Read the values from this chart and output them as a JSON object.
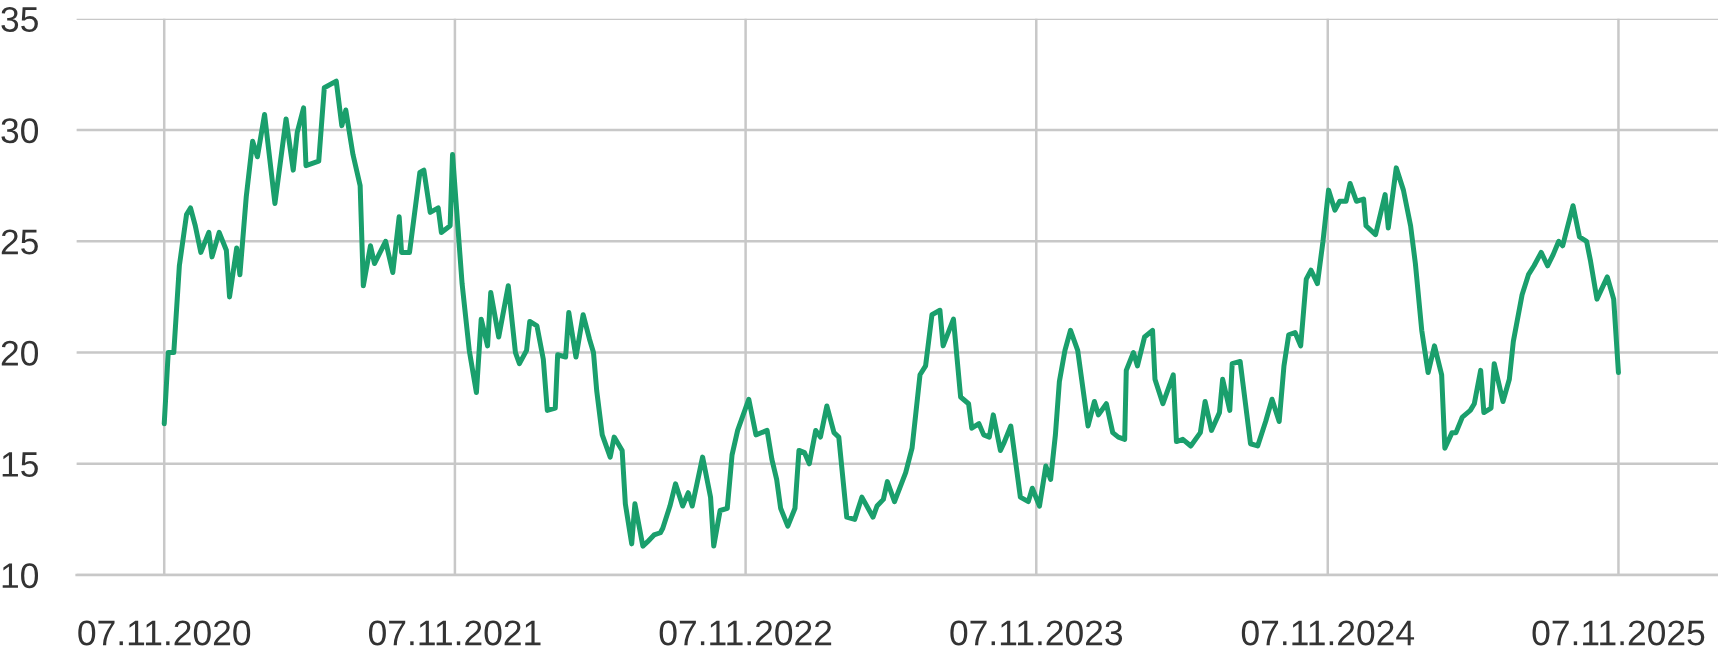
{
  "chart_data": {
    "type": "line",
    "x": [
      "2020-11-07",
      "2020-11-12",
      "2020-11-19",
      "2020-11-26",
      "2020-12-05",
      "2020-12-10",
      "2020-12-16",
      "2020-12-23",
      "2021-01-02",
      "2021-01-06",
      "2021-01-15",
      "2021-01-24",
      "2021-01-28",
      "2021-02-06",
      "2021-02-10",
      "2021-02-18",
      "2021-02-26",
      "2021-03-04",
      "2021-03-13",
      "2021-03-26",
      "2021-04-09",
      "2021-04-18",
      "2021-04-23",
      "2021-05-01",
      "2021-05-04",
      "2021-05-20",
      "2021-05-27",
      "2021-06-11",
      "2021-06-18",
      "2021-06-23",
      "2021-07-02",
      "2021-07-11",
      "2021-07-15",
      "2021-07-24",
      "2021-07-29",
      "2021-08-12",
      "2021-08-21",
      "2021-08-29",
      "2021-09-01",
      "2021-09-11",
      "2021-09-24",
      "2021-09-29",
      "2021-10-07",
      "2021-10-17",
      "2021-10-21",
      "2021-11-01",
      "2021-11-04",
      "2021-11-16",
      "2021-11-25",
      "2021-12-04",
      "2021-12-10",
      "2021-12-18",
      "2021-12-22",
      "2022-01-01",
      "2022-01-13",
      "2022-01-22",
      "2022-01-27",
      "2022-02-05",
      "2022-02-09",
      "2022-02-18",
      "2022-02-26",
      "2022-03-03",
      "2022-03-13",
      "2022-03-16",
      "2022-03-26",
      "2022-03-30",
      "2022-04-08",
      "2022-04-17",
      "2022-04-25",
      "2022-04-30",
      "2022-05-04",
      "2022-05-11",
      "2022-05-21",
      "2022-05-26",
      "2022-06-05",
      "2022-06-09",
      "2022-06-17",
      "2022-06-21",
      "2022-07-01",
      "2022-07-07",
      "2022-07-15",
      "2022-07-23",
      "2022-07-26",
      "2022-08-04",
      "2022-08-11",
      "2022-08-20",
      "2022-08-27",
      "2022-09-01",
      "2022-09-14",
      "2022-09-24",
      "2022-09-28",
      "2022-10-06",
      "2022-10-15",
      "2022-10-21",
      "2022-10-28",
      "2022-11-11",
      "2022-11-20",
      "2022-12-04",
      "2022-12-10",
      "2022-12-16",
      "2022-12-21",
      "2022-12-30",
      "2023-01-08",
      "2023-01-13",
      "2023-01-20",
      "2023-01-26",
      "2023-02-03",
      "2023-02-09",
      "2023-02-17",
      "2023-02-26",
      "2023-03-04",
      "2023-03-14",
      "2023-03-24",
      "2023-04-02",
      "2023-04-16",
      "2023-04-21",
      "2023-04-29",
      "2023-05-04",
      "2023-05-13",
      "2023-05-27",
      "2023-06-04",
      "2023-06-14",
      "2023-06-21",
      "2023-06-29",
      "2023-07-09",
      "2023-07-13",
      "2023-07-26",
      "2023-08-04",
      "2023-08-14",
      "2023-08-18",
      "2023-08-27",
      "2023-09-02",
      "2023-09-09",
      "2023-09-14",
      "2023-09-23",
      "2023-09-27",
      "2023-10-06",
      "2023-10-18",
      "2023-10-28",
      "2023-11-02",
      "2023-11-11",
      "2023-11-19",
      "2023-11-25",
      "2023-12-01",
      "2023-12-06",
      "2023-12-13",
      "2023-12-20",
      "2023-12-29",
      "2024-01-11",
      "2024-01-19",
      "2024-01-24",
      "2024-02-03",
      "2024-02-11",
      "2024-02-18",
      "2024-02-26",
      "2024-02-28",
      "2024-03-08",
      "2024-03-13",
      "2024-03-22",
      "2024-04-01",
      "2024-04-04",
      "2024-04-14",
      "2024-04-27",
      "2024-05-01",
      "2024-05-09",
      "2024-05-19",
      "2024-05-31",
      "2024-06-06",
      "2024-06-14",
      "2024-06-24",
      "2024-06-28",
      "2024-07-07",
      "2024-07-10",
      "2024-07-20",
      "2024-08-02",
      "2024-08-11",
      "2024-08-21",
      "2024-08-29",
      "2024-09-07",
      "2024-09-13",
      "2024-09-19",
      "2024-09-27",
      "2024-10-04",
      "2024-10-11",
      "2024-10-17",
      "2024-10-25",
      "2024-11-01",
      "2024-11-08",
      "2024-11-16",
      "2024-11-22",
      "2024-11-30",
      "2024-12-05",
      "2024-12-13",
      "2024-12-22",
      "2024-12-25",
      "2025-01-06",
      "2025-01-18",
      "2025-01-22",
      "2025-02-01",
      "2025-02-10",
      "2025-02-19",
      "2025-02-25",
      "2025-03-05",
      "2025-03-13",
      "2025-03-21",
      "2025-03-30",
      "2025-04-03",
      "2025-04-12",
      "2025-04-17",
      "2025-04-25",
      "2025-05-05",
      "2025-05-10",
      "2025-05-18",
      "2025-05-22",
      "2025-05-31",
      "2025-06-04",
      "2025-06-15",
      "2025-06-23",
      "2025-06-28",
      "2025-07-09",
      "2025-07-17",
      "2025-07-24",
      "2025-08-02",
      "2025-08-10",
      "2025-08-17",
      "2025-08-24",
      "2025-08-29",
      "2025-09-03",
      "2025-09-11",
      "2025-09-19",
      "2025-09-28",
      "2025-10-03",
      "2025-10-11",
      "2025-10-24",
      "2025-11-01",
      "2025-11-07"
    ],
    "series": [
      {
        "color": "#1a9f6c",
        "values": [
          16.8,
          20.0,
          20.0,
          23.9,
          26.2,
          26.5,
          25.7,
          24.5,
          25.4,
          24.3,
          25.4,
          24.6,
          22.5,
          24.7,
          23.5,
          27.0,
          29.5,
          28.8,
          30.7,
          26.7,
          30.5,
          28.2,
          29.9,
          31.0,
          28.4,
          28.6,
          31.9,
          32.2,
          30.2,
          30.9,
          28.9,
          27.5,
          23.0,
          24.8,
          24.0,
          25.0,
          23.6,
          26.1,
          24.5,
          24.5,
          28.1,
          28.2,
          26.3,
          26.5,
          25.4,
          25.7,
          28.9,
          23.1,
          20.1,
          18.2,
          21.5,
          20.3,
          22.7,
          20.7,
          23.0,
          20.0,
          19.5,
          20.1,
          21.4,
          21.2,
          19.7,
          17.4,
          17.5,
          19.9,
          19.8,
          21.8,
          19.8,
          21.7,
          20.6,
          20.0,
          18.3,
          16.3,
          15.3,
          16.2,
          15.6,
          13.2,
          11.4,
          13.2,
          11.3,
          11.5,
          11.8,
          11.9,
          12.1,
          13.1,
          14.1,
          13.1,
          13.7,
          13.1,
          15.3,
          13.5,
          11.3,
          12.9,
          13.0,
          15.4,
          16.5,
          17.9,
          16.3,
          16.5,
          15.2,
          14.3,
          13.0,
          12.2,
          13.0,
          15.6,
          15.5,
          15.0,
          16.5,
          16.2,
          17.6,
          16.4,
          16.2,
          12.6,
          12.5,
          13.5,
          12.6,
          13.1,
          13.4,
          14.2,
          13.3,
          14.6,
          15.7,
          19.0,
          19.4,
          21.7,
          21.9,
          20.3,
          21.5,
          18.0,
          17.7,
          16.6,
          16.8,
          16.3,
          16.2,
          17.2,
          15.6,
          15.9,
          16.7,
          13.5,
          13.3,
          13.9,
          13.1,
          14.9,
          14.3,
          16.3,
          18.7,
          20.1,
          21.0,
          20.1,
          16.7,
          17.8,
          17.2,
          17.7,
          16.4,
          16.2,
          16.1,
          19.2,
          20.0,
          19.4,
          20.7,
          21.0,
          18.8,
          17.7,
          19.0,
          16.0,
          16.1,
          15.8,
          16.4,
          17.8,
          16.5,
          17.3,
          18.8,
          17.4,
          19.5,
          19.6,
          15.9,
          15.8,
          16.9,
          17.9,
          16.9,
          19.4,
          20.8,
          20.9,
          20.3,
          23.3,
          23.7,
          23.1,
          25.0,
          27.3,
          26.4,
          26.8,
          26.8,
          27.6,
          26.8,
          26.9,
          25.7,
          25.3,
          27.1,
          25.6,
          28.3,
          27.3,
          25.7,
          24.0,
          21.0,
          19.1,
          20.3,
          19.0,
          15.7,
          16.4,
          16.4,
          17.1,
          17.4,
          17.7,
          19.2,
          17.3,
          17.5,
          19.5,
          17.8,
          18.8,
          20.5,
          22.6,
          23.5,
          23.9,
          24.5,
          23.9,
          24.4,
          25.0,
          24.8,
          25.5,
          26.6,
          25.2,
          25.0,
          24.1,
          22.4,
          23.4,
          22.4,
          19.1
        ]
      }
    ],
    "xlim": [
      "2020-07-20",
      "2026-03-12"
    ],
    "xticks": [
      {
        "value": "2020-11-07",
        "label": "07.11.2020"
      },
      {
        "value": "2021-11-07",
        "label": "07.11.2021"
      },
      {
        "value": "2022-11-07",
        "label": "07.11.2022"
      },
      {
        "value": "2023-11-07",
        "label": "07.11.2023"
      },
      {
        "value": "2024-11-07",
        "label": "07.11.2024"
      },
      {
        "value": "2025-11-07",
        "label": "07.11.2025"
      }
    ],
    "ylim": [
      10,
      35
    ],
    "yticks": [
      10,
      15,
      20,
      25,
      30,
      35
    ],
    "grid": true,
    "line_style": "solid"
  }
}
